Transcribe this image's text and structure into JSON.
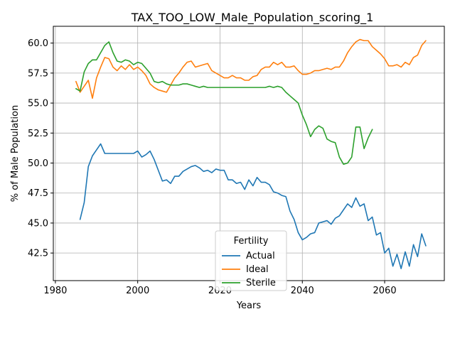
{
  "chart_data": {
    "type": "line",
    "title": "TAX_TOO_LOW_Male_Population_scoring_1",
    "xlabel": "Years",
    "ylabel": "% of Male Population",
    "xlim": [
      1979.5,
      2074.5
    ],
    "ylim": [
      40.2,
      61.4
    ],
    "xticks": [
      1980,
      2000,
      2020,
      2040,
      2060
    ],
    "yticks": [
      42.5,
      45.0,
      47.5,
      50.0,
      52.5,
      55.0,
      57.5,
      60.0
    ],
    "grid": true,
    "legend": {
      "title": "Fertility",
      "placement": "lower-center"
    },
    "series": [
      {
        "name": "Actual",
        "color": "#1f77b4",
        "x": [
          1986,
          1987,
          1988,
          1989,
          1990,
          1991,
          1992,
          1993,
          1994,
          1995,
          1996,
          1997,
          1998,
          1999,
          2000,
          2001,
          2002,
          2003,
          2004,
          2005,
          2006,
          2007,
          2008,
          2009,
          2010,
          2011,
          2012,
          2013,
          2014,
          2015,
          2016,
          2017,
          2018,
          2019,
          2020,
          2021,
          2022,
          2023,
          2024,
          2025,
          2026,
          2027,
          2028,
          2029,
          2030,
          2031,
          2032,
          2033,
          2034,
          2035,
          2036,
          2037,
          2038,
          2039,
          2040,
          2041,
          2042,
          2043,
          2044,
          2045,
          2046,
          2047,
          2048,
          2049,
          2050,
          2051,
          2052,
          2053,
          2054,
          2055,
          2056,
          2057,
          2058,
          2059,
          2060,
          2061,
          2062,
          2063,
          2064,
          2065,
          2066,
          2067,
          2068,
          2069,
          2070
        ],
        "values": [
          45.3,
          46.7,
          49.7,
          50.6,
          51.1,
          51.6,
          50.8,
          50.8,
          50.8,
          50.8,
          50.8,
          50.8,
          50.8,
          50.8,
          51.0,
          50.5,
          50.7,
          51.0,
          50.3,
          49.4,
          48.5,
          48.6,
          48.3,
          48.9,
          48.9,
          49.3,
          49.5,
          49.7,
          49.8,
          49.6,
          49.3,
          49.4,
          49.2,
          49.5,
          49.4,
          49.4,
          48.6,
          48.6,
          48.3,
          48.4,
          47.8,
          48.6,
          48.1,
          48.8,
          48.4,
          48.4,
          48.2,
          47.6,
          47.5,
          47.3,
          47.2,
          46.0,
          45.3,
          44.2,
          43.6,
          43.8,
          44.1,
          44.2,
          45.0,
          45.1,
          45.2,
          44.9,
          45.4,
          45.6,
          46.1,
          46.6,
          46.3,
          47.1,
          46.4,
          46.6,
          45.2,
          45.5,
          44.0,
          44.2,
          42.5,
          42.9,
          41.4,
          42.4,
          41.2,
          42.6,
          41.4,
          43.2,
          42.2,
          44.1,
          43.1
        ]
      },
      {
        "name": "Ideal",
        "color": "#ff7f0e",
        "x": [
          1985,
          1986,
          1987,
          1988,
          1989,
          1990,
          1991,
          1992,
          1993,
          1994,
          1995,
          1996,
          1997,
          1998,
          1999,
          2000,
          2001,
          2002,
          2003,
          2004,
          2005,
          2006,
          2007,
          2008,
          2009,
          2010,
          2011,
          2012,
          2013,
          2014,
          2015,
          2016,
          2017,
          2018,
          2019,
          2020,
          2021,
          2022,
          2023,
          2024,
          2025,
          2026,
          2027,
          2028,
          2029,
          2030,
          2031,
          2032,
          2033,
          2034,
          2035,
          2036,
          2037,
          2038,
          2039,
          2040,
          2041,
          2042,
          2043,
          2044,
          2045,
          2046,
          2047,
          2048,
          2049,
          2050,
          2051,
          2052,
          2053,
          2054,
          2055,
          2056,
          2057,
          2058,
          2059,
          2060,
          2061,
          2062,
          2063,
          2064,
          2065,
          2066,
          2067,
          2068,
          2069,
          2070
        ],
        "values": [
          56.8,
          55.9,
          56.4,
          56.9,
          55.4,
          57.1,
          58.0,
          58.8,
          58.7,
          58.0,
          57.7,
          58.1,
          57.8,
          58.2,
          57.8,
          58.0,
          57.7,
          57.3,
          56.6,
          56.3,
          56.1,
          56.0,
          55.9,
          56.5,
          57.1,
          57.5,
          58.0,
          58.4,
          58.5,
          58.0,
          58.1,
          58.2,
          58.3,
          57.7,
          57.5,
          57.3,
          57.1,
          57.1,
          57.3,
          57.1,
          57.1,
          56.9,
          56.9,
          57.2,
          57.3,
          57.8,
          58.0,
          58.0,
          58.4,
          58.2,
          58.4,
          58.0,
          58.0,
          58.1,
          57.7,
          57.4,
          57.4,
          57.5,
          57.7,
          57.7,
          57.8,
          57.9,
          57.8,
          58.0,
          58.0,
          58.5,
          59.2,
          59.7,
          60.1,
          60.3,
          60.2,
          60.2,
          59.7,
          59.4,
          59.1,
          58.7,
          58.1,
          58.1,
          58.2,
          58.0,
          58.4,
          58.2,
          58.8,
          59.0,
          59.8,
          60.2
        ]
      },
      {
        "name": "Sterile",
        "color": "#2ca02c",
        "x": [
          1985,
          1986,
          1987,
          1988,
          1989,
          1990,
          1991,
          1992,
          1993,
          1994,
          1995,
          1996,
          1997,
          1998,
          1999,
          2000,
          2001,
          2002,
          2003,
          2004,
          2005,
          2006,
          2007,
          2008,
          2009,
          2010,
          2011,
          2012,
          2013,
          2014,
          2015,
          2016,
          2017,
          2018,
          2019,
          2020,
          2021,
          2022,
          2023,
          2024,
          2025,
          2026,
          2027,
          2028,
          2029,
          2030,
          2031,
          2032,
          2033,
          2034,
          2035,
          2036,
          2037,
          2038,
          2039,
          2040,
          2041,
          2042,
          2043,
          2044,
          2045,
          2046,
          2047,
          2048,
          2049,
          2050,
          2051,
          2052,
          2053,
          2054,
          2055,
          2056,
          2057
        ],
        "values": [
          56.2,
          56.0,
          57.6,
          58.3,
          58.6,
          58.6,
          59.2,
          59.8,
          60.1,
          59.2,
          58.5,
          58.4,
          58.6,
          58.5,
          58.2,
          58.4,
          58.3,
          57.9,
          57.5,
          56.8,
          56.7,
          56.8,
          56.6,
          56.5,
          56.5,
          56.5,
          56.6,
          56.6,
          56.5,
          56.4,
          56.3,
          56.4,
          56.3,
          56.3,
          56.3,
          56.3,
          56.3,
          56.3,
          56.3,
          56.3,
          56.3,
          56.3,
          56.3,
          56.3,
          56.3,
          56.3,
          56.3,
          56.4,
          56.3,
          56.4,
          56.3,
          55.9,
          55.6,
          55.3,
          55.0,
          54.0,
          53.2,
          52.2,
          52.8,
          53.1,
          52.9,
          52.0,
          51.8,
          51.7,
          50.5,
          49.9,
          50.0,
          50.5,
          53.0,
          53.0,
          51.2,
          52.1,
          52.8
        ]
      }
    ]
  }
}
